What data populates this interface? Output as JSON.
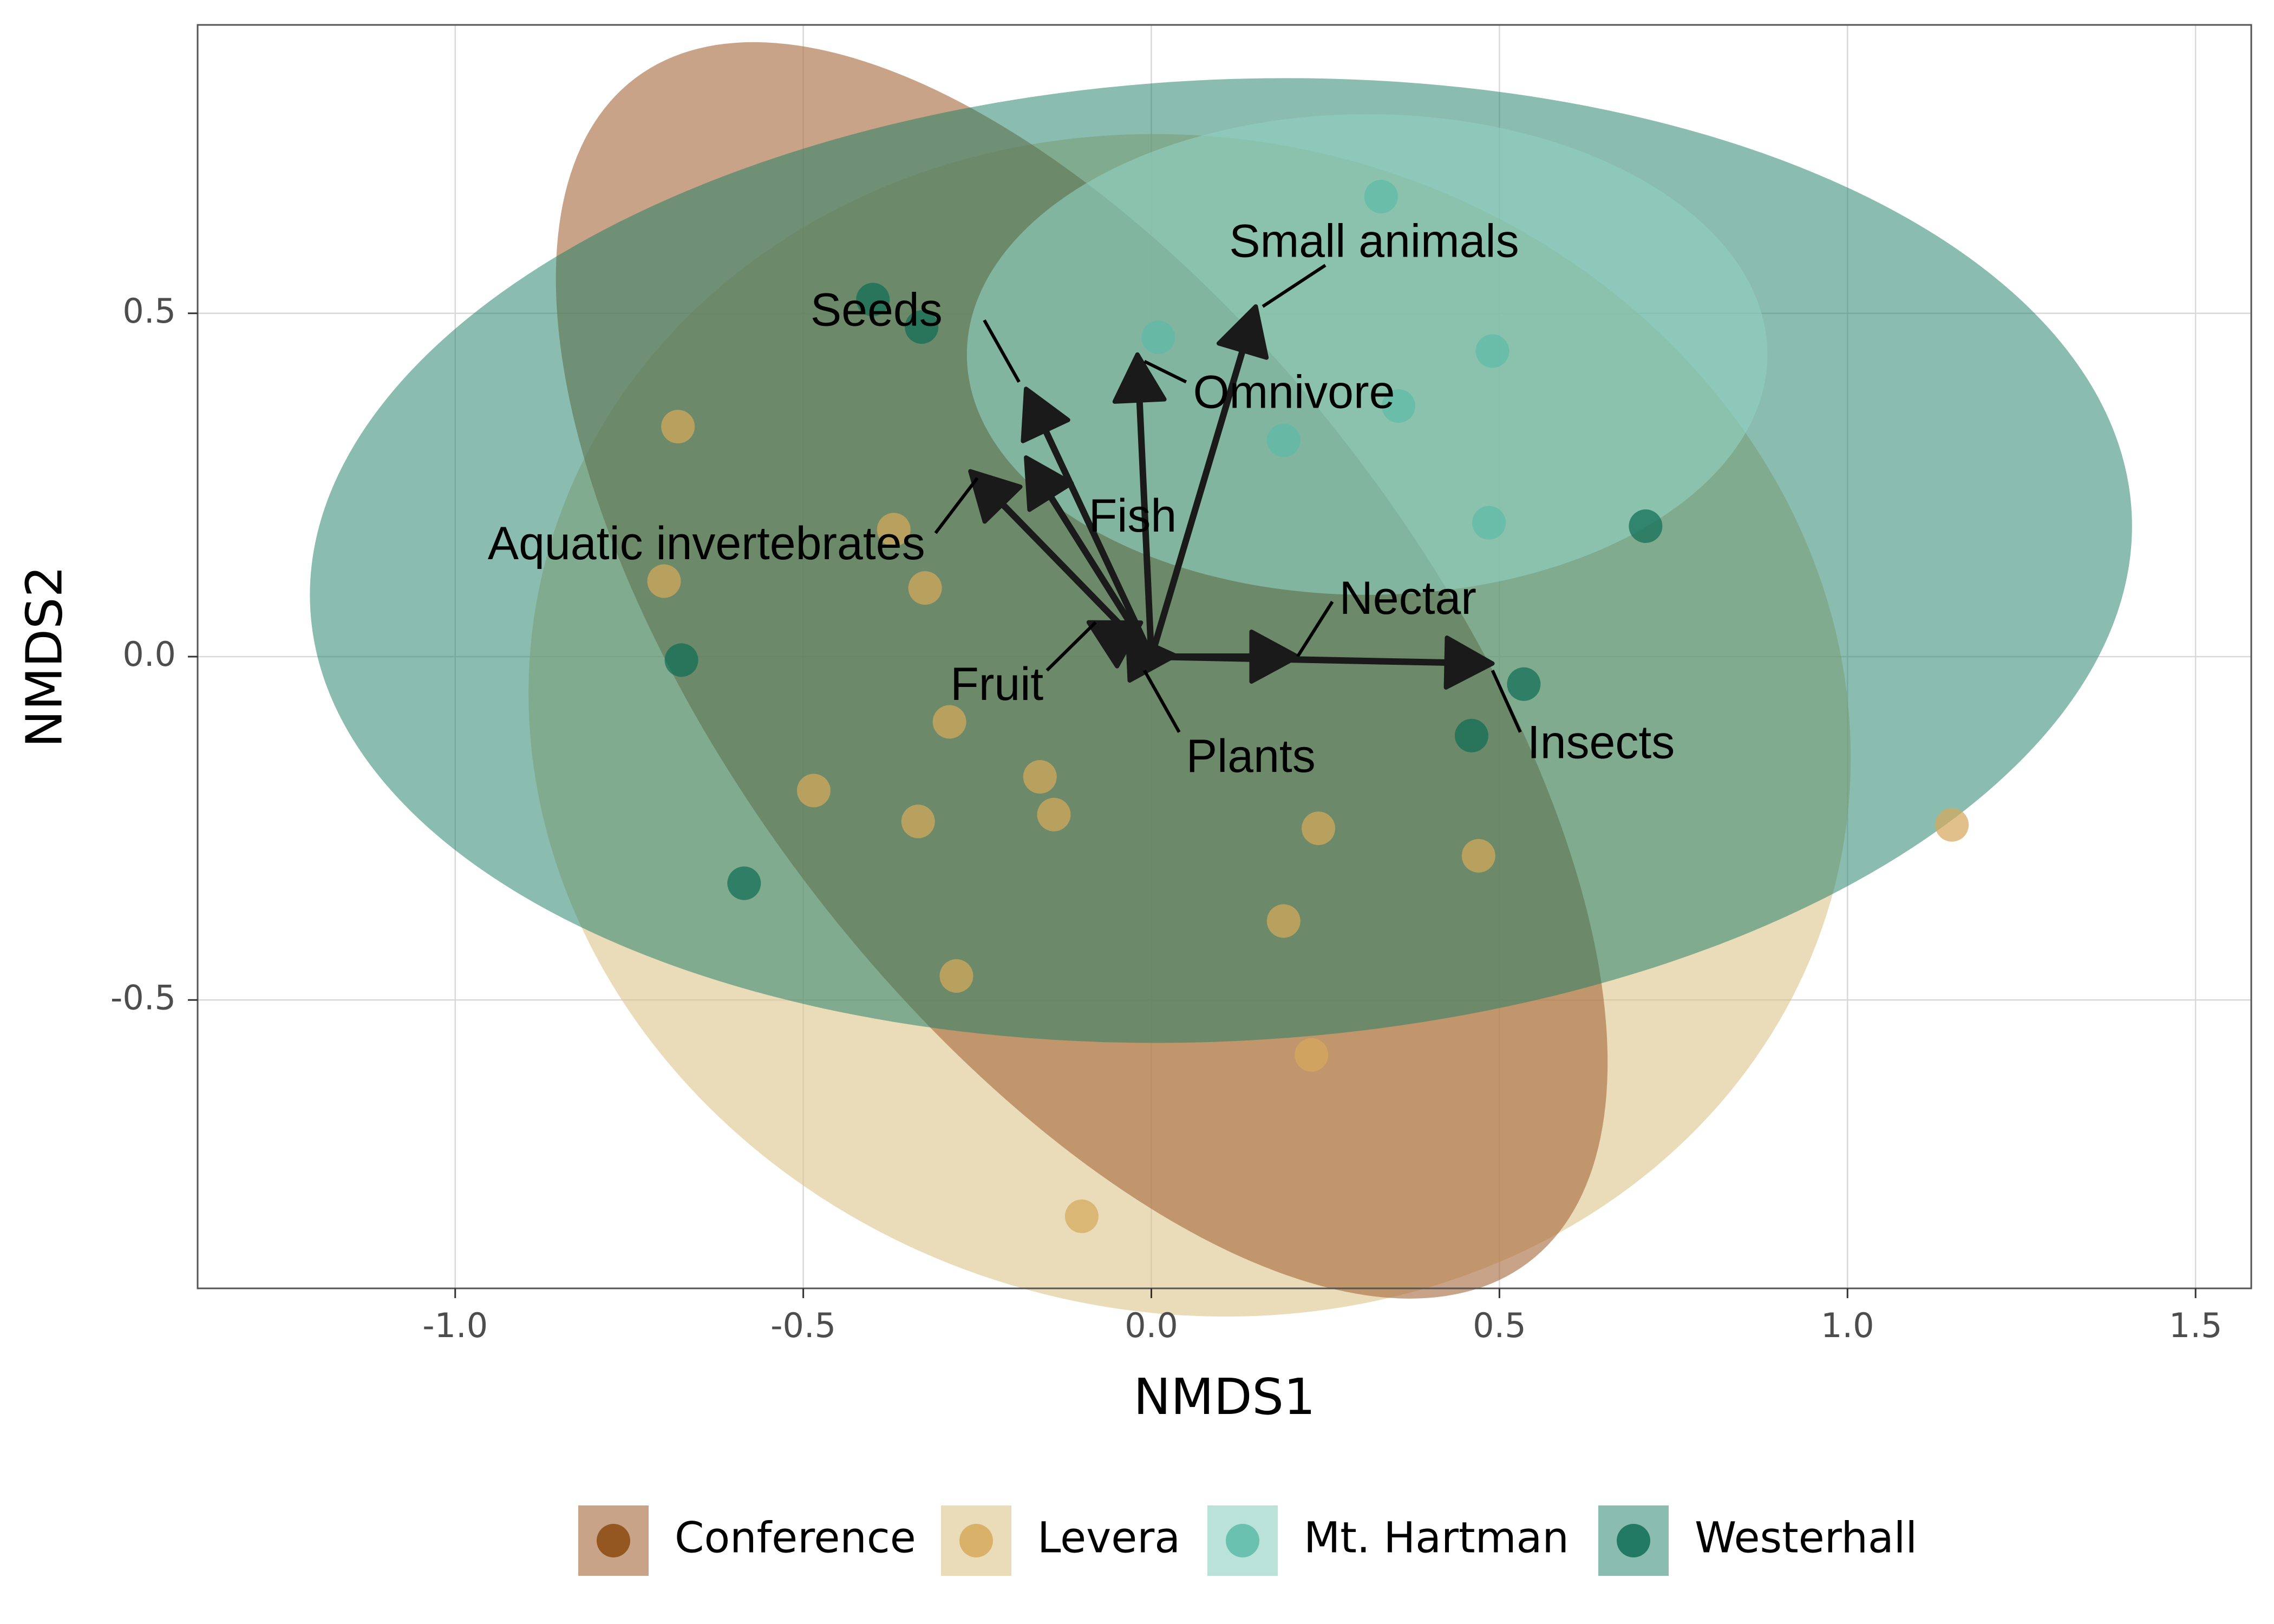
{
  "chart_data": {
    "type": "scatter",
    "xlabel": "NMDS1",
    "ylabel": "NMDS2",
    "xlim": [
      -1.37,
      1.58
    ],
    "ylim": [
      -0.92,
      0.92
    ],
    "x_ticks": [
      -1.0,
      -0.5,
      0.0,
      0.5,
      1.0,
      1.5
    ],
    "x_tick_labels": [
      "-1.0",
      "-0.5",
      "0.0",
      "0.5",
      "1.0",
      "1.5"
    ],
    "y_ticks": [
      -0.5,
      0.0,
      0.5
    ],
    "y_tick_labels": [
      "-0.5",
      "0.0",
      "0.5"
    ],
    "grid": true,
    "legend_position": "bottom",
    "groups": [
      {
        "name": "Conference",
        "color": "#8c4a10",
        "fill": "#a86b3d",
        "fill_opacity": 0.62
      },
      {
        "name": "Levera",
        "color": "#d6a95b",
        "fill": "#dcc48a",
        "fill_opacity": 0.6
      },
      {
        "name": "Mt. Hartman",
        "color": "#5dbba8",
        "fill": "#8fd0c0",
        "fill_opacity": 0.62
      },
      {
        "name": "Westerhall",
        "color": "#0f6e58",
        "fill": "#1f7e67",
        "fill_opacity": 0.52
      }
    ],
    "ellipses": [
      {
        "group": "Levera",
        "cx": 0.055,
        "cy": -0.1,
        "rx": 0.955,
        "ry": 0.855,
        "angle_deg": -13
      },
      {
        "group": "Conference",
        "cx": -0.1,
        "cy": -0.02,
        "rx": 0.5,
        "ry": 1.08,
        "angle_deg": 37
      },
      {
        "group": "Westerhall",
        "cx": 0.1,
        "cy": 0.14,
        "rx": 1.31,
        "ry": 0.7,
        "angle_deg": 3
      },
      {
        "group": "Mt. Hartman",
        "cx": 0.31,
        "cy": 0.44,
        "rx": 0.575,
        "ry": 0.35,
        "angle_deg": 0
      }
    ],
    "points": [
      {
        "x": 0.33,
        "y": 0.67,
        "group": "Mt. Hartman"
      },
      {
        "x": 0.01,
        "y": 0.465,
        "group": "Mt. Hartman"
      },
      {
        "x": 0.49,
        "y": 0.445,
        "group": "Mt. Hartman"
      },
      {
        "x": 0.355,
        "y": 0.365,
        "group": "Mt. Hartman"
      },
      {
        "x": 0.19,
        "y": 0.315,
        "group": "Mt. Hartman"
      },
      {
        "x": 0.485,
        "y": 0.195,
        "group": "Mt. Hartman"
      },
      {
        "x": -0.4,
        "y": 0.52,
        "group": "Westerhall"
      },
      {
        "x": -0.33,
        "y": 0.48,
        "group": "Westerhall"
      },
      {
        "x": 0.71,
        "y": 0.19,
        "group": "Westerhall"
      },
      {
        "x": -0.675,
        "y": -0.005,
        "group": "Westerhall"
      },
      {
        "x": 0.535,
        "y": -0.04,
        "group": "Westerhall"
      },
      {
        "x": 0.46,
        "y": -0.115,
        "group": "Westerhall"
      },
      {
        "x": -0.585,
        "y": -0.33,
        "group": "Westerhall"
      },
      {
        "x": -0.68,
        "y": 0.335,
        "group": "Levera"
      },
      {
        "x": -0.37,
        "y": 0.185,
        "group": "Levera"
      },
      {
        "x": -0.7,
        "y": 0.11,
        "group": "Levera"
      },
      {
        "x": -0.325,
        "y": 0.1,
        "group": "Levera"
      },
      {
        "x": -0.29,
        "y": -0.095,
        "group": "Levera"
      },
      {
        "x": -0.485,
        "y": -0.195,
        "group": "Levera"
      },
      {
        "x": -0.335,
        "y": -0.24,
        "group": "Levera"
      },
      {
        "x": -0.16,
        "y": -0.175,
        "group": "Levera"
      },
      {
        "x": -0.14,
        "y": -0.23,
        "group": "Levera"
      },
      {
        "x": 0.24,
        "y": -0.25,
        "group": "Levera"
      },
      {
        "x": 0.47,
        "y": -0.29,
        "group": "Levera"
      },
      {
        "x": 0.19,
        "y": -0.385,
        "group": "Levera"
      },
      {
        "x": -0.28,
        "y": -0.465,
        "group": "Levera"
      },
      {
        "x": 1.15,
        "y": -0.245,
        "group": "Levera"
      },
      {
        "x": 0.23,
        "y": -0.58,
        "group": "Levera"
      },
      {
        "x": -0.1,
        "y": -0.815,
        "group": "Levera"
      }
    ],
    "vectors": [
      {
        "name": "Small animals",
        "x": 0.15,
        "y": 0.51,
        "label_x": 0.32,
        "label_y": 0.6,
        "label_anchor": "middle",
        "leader": [
          0.25,
          0.57,
          0.16,
          0.51
        ]
      },
      {
        "name": "Seeds",
        "x": -0.18,
        "y": 0.39,
        "label_x": -0.3,
        "label_y": 0.5,
        "label_anchor": "end",
        "leader": [
          -0.24,
          0.49,
          -0.19,
          0.4
        ]
      },
      {
        "name": "Omnivore",
        "x": -0.02,
        "y": 0.44,
        "label_x": 0.06,
        "label_y": 0.38,
        "label_anchor": "start",
        "leader": [
          0.05,
          0.4,
          -0.01,
          0.43
        ]
      },
      {
        "name": "Aquatic invertebrates",
        "x": -0.26,
        "y": 0.27,
        "label_x": -0.325,
        "label_y": 0.16,
        "label_anchor": "end",
        "leader": [
          -0.31,
          0.18,
          -0.25,
          0.26
        ]
      },
      {
        "name": "Fish",
        "x": -0.18,
        "y": 0.29,
        "label_x": -0.09,
        "label_y": 0.2,
        "label_anchor": "start",
        "leader": null
      },
      {
        "name": "Nectar",
        "x": 0.21,
        "y": 0.0,
        "label_x": 0.27,
        "label_y": 0.08,
        "label_anchor": "start",
        "leader": [
          0.26,
          0.08,
          0.21,
          0.0
        ]
      },
      {
        "name": "Insects",
        "x": 0.49,
        "y": -0.01,
        "label_x": 0.54,
        "label_y": -0.13,
        "label_anchor": "start",
        "leader": [
          0.53,
          -0.11,
          0.49,
          -0.02
        ]
      },
      {
        "name": "Fruit",
        "x": -0.09,
        "y": 0.05,
        "label_x": -0.155,
        "label_y": -0.045,
        "label_anchor": "end",
        "leader": [
          -0.15,
          -0.02,
          -0.08,
          0.05
        ]
      },
      {
        "name": "Plants",
        "x": 0.0,
        "y": 0.0,
        "label_x": 0.05,
        "label_y": -0.15,
        "label_anchor": "start",
        "leader": [
          0.04,
          -0.11,
          -0.01,
          -0.02
        ]
      }
    ],
    "legend": [
      "Conference",
      "Levera",
      "Mt. Hartman",
      "Westerhall"
    ]
  }
}
